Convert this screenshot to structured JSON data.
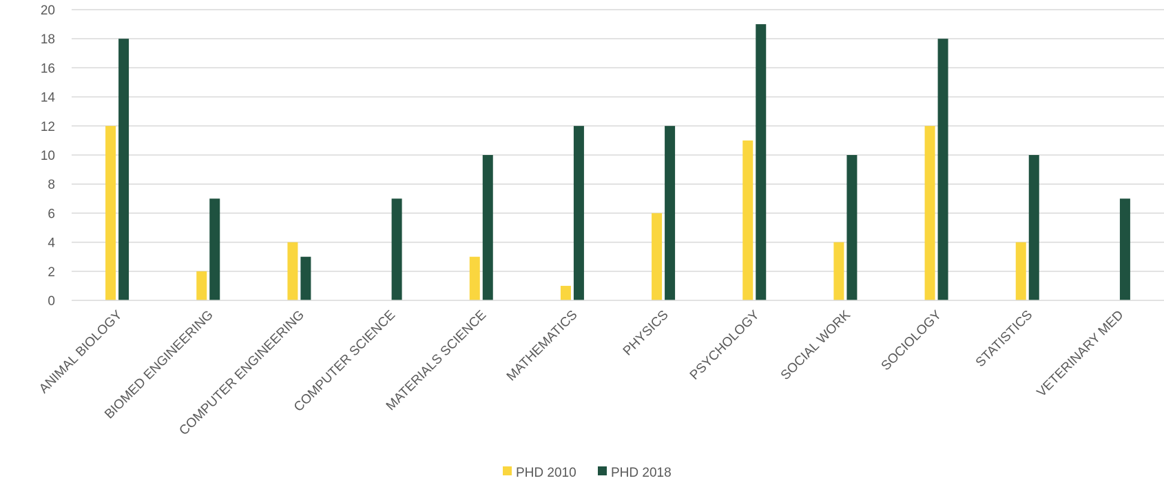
{
  "chart_data": {
    "type": "bar",
    "title": "",
    "xlabel": "",
    "ylabel": "",
    "ylim": [
      0,
      20
    ],
    "yticks": [
      0,
      2,
      4,
      6,
      8,
      10,
      12,
      14,
      16,
      18,
      20
    ],
    "grid": true,
    "legend_position": "bottom",
    "categories": [
      "ANIMAL BIOLOGY",
      "BIOMED ENGINEERING",
      "COMPUTER ENGINEERING",
      "COMPUTER SCIENCE",
      "MATERIALS SCIENCE",
      "MATHEMATICS",
      "PHYSICS",
      "PSYCHOLOGY",
      "SOCIAL WORK",
      "SOCIOLOGY",
      "STATISTICS",
      "VETERINARY MED"
    ],
    "series": [
      {
        "name": "PHD 2010",
        "color": "#FAD63F",
        "values": [
          12,
          2,
          4,
          0,
          3,
          1,
          6,
          11,
          4,
          12,
          4,
          0
        ]
      },
      {
        "name": "PHD 2018",
        "color": "#1F5240",
        "values": [
          18,
          7,
          3,
          7,
          10,
          12,
          12,
          19,
          10,
          18,
          10,
          7
        ]
      }
    ]
  }
}
